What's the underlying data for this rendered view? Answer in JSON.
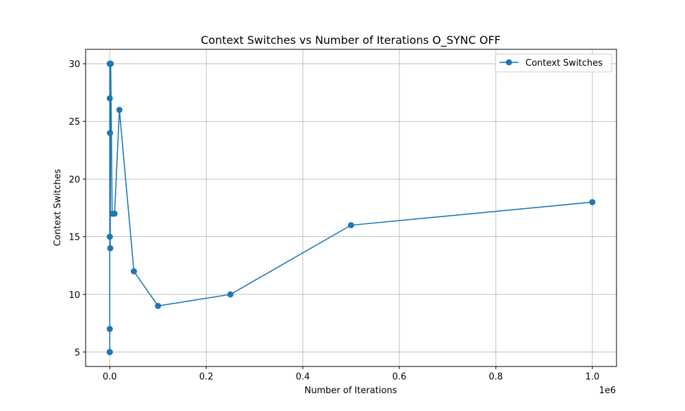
{
  "chart_data": {
    "type": "line",
    "title": "Context Switches vs Number of Iterations O_SYNC OFF",
    "xlabel": "Number of Iterations",
    "ylabel": "Context Switches",
    "x_offset_label": "1e6",
    "xlim": [
      -50000,
      1050000
    ],
    "ylim": [
      3.75,
      31.25
    ],
    "xticks": [
      0,
      200000,
      400000,
      600000,
      800000,
      1000000
    ],
    "xtick_labels": [
      "0.0",
      "0.2",
      "0.4",
      "0.6",
      "0.8",
      "1.0"
    ],
    "yticks": [
      5,
      10,
      15,
      20,
      25,
      30
    ],
    "ytick_labels": [
      "5",
      "10",
      "15",
      "20",
      "25",
      "30"
    ],
    "grid": true,
    "legend_position": "top-right",
    "colors": {
      "series": "#1f77b4"
    },
    "series": [
      {
        "name": "Context Switches",
        "x": [
          1,
          2,
          5,
          10,
          20,
          50,
          100,
          200,
          500,
          1000,
          2000,
          5000,
          10000,
          20000,
          50000,
          100000,
          250000,
          500000,
          1000000
        ],
        "y": [
          5,
          5,
          7,
          5,
          30,
          27,
          15,
          30,
          24,
          14,
          30,
          17,
          17,
          26,
          12,
          9,
          10,
          16,
          18
        ]
      }
    ]
  }
}
